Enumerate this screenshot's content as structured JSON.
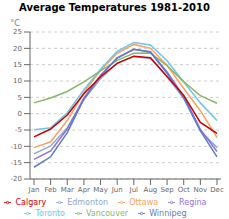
{
  "chart_data": {
    "type": "line",
    "title": "Average Temperatures 1981-2010",
    "ylabel": "°C",
    "categories": [
      "Jan",
      "Feb",
      "Mar",
      "Apr",
      "May",
      "Jun",
      "Jul",
      "Aug",
      "Sep",
      "Oct",
      "Nov",
      "Dec"
    ],
    "series": [
      {
        "name": "Edmonton",
        "color": "#8fa8c8",
        "values": [
          -12.3,
          -9.9,
          -4.3,
          4.3,
          10.7,
          15.5,
          17.5,
          16.9,
          11.3,
          4.7,
          -5.2,
          -10.4
        ]
      },
      {
        "name": "Ottawa",
        "color": "#f4a460",
        "values": [
          -10.4,
          -8.6,
          -2.1,
          6.5,
          13.3,
          18.5,
          21.2,
          20.0,
          14.8,
          7.7,
          0.9,
          -7.3
        ]
      },
      {
        "name": "Regina",
        "color": "#9370db",
        "values": [
          -14.0,
          -11.4,
          -4.7,
          4.8,
          11.7,
          17.1,
          19.7,
          19.0,
          12.8,
          5.4,
          -4.8,
          -11.6
        ]
      },
      {
        "name": "Toronto",
        "color": "#6ec6e6",
        "values": [
          -4.9,
          -4.3,
          0.3,
          7.3,
          13.6,
          19.1,
          21.8,
          21.0,
          16.2,
          9.7,
          3.3,
          -2.1
        ]
      },
      {
        "name": "Vancouver",
        "color": "#8db56a",
        "values": [
          3.3,
          4.8,
          6.8,
          9.7,
          13.1,
          16.3,
          18.5,
          18.6,
          14.7,
          9.8,
          5.5,
          3.2
        ]
      },
      {
        "name": "Winnipeg",
        "color": "#5b7dc8",
        "values": [
          -16.4,
          -13.2,
          -5.8,
          4.5,
          11.6,
          17.0,
          19.7,
          18.8,
          12.4,
          4.8,
          -5.3,
          -13.2
        ]
      },
      {
        "name": "Calgary",
        "color": "#cc0000",
        "values": [
          -7.1,
          -4.7,
          -0.4,
          6.1,
          11.3,
          15.4,
          17.6,
          17.1,
          11.4,
          5.6,
          -2.7,
          -6.0
        ]
      }
    ],
    "ylim": [
      -20,
      25
    ],
    "yticks": [
      -20,
      -15,
      -10,
      -5,
      0,
      5,
      10,
      15,
      20,
      25
    ],
    "grid": true,
    "legend": "bottom"
  }
}
